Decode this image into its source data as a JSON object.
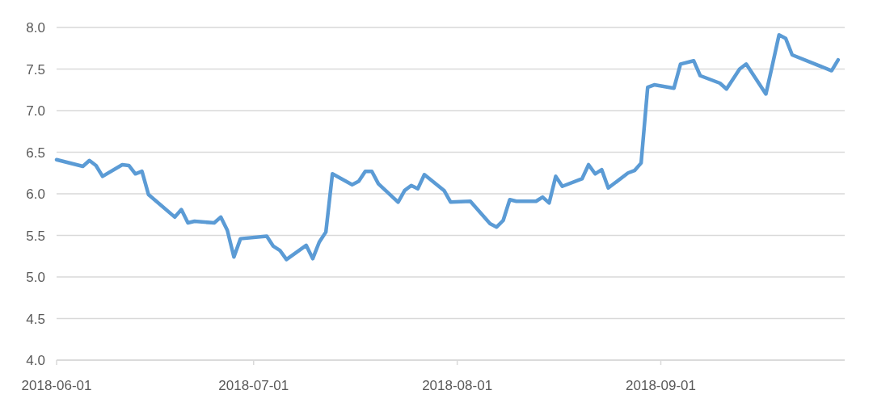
{
  "chart_data": {
    "type": "line",
    "x": [
      "2018-06-01",
      "2018-06-05",
      "2018-06-06",
      "2018-06-07",
      "2018-06-08",
      "2018-06-11",
      "2018-06-12",
      "2018-06-13",
      "2018-06-14",
      "2018-06-15",
      "2018-06-19",
      "2018-06-20",
      "2018-06-21",
      "2018-06-22",
      "2018-06-25",
      "2018-06-26",
      "2018-06-27",
      "2018-06-28",
      "2018-06-29",
      "2018-07-03",
      "2018-07-04",
      "2018-07-05",
      "2018-07-06",
      "2018-07-09",
      "2018-07-10",
      "2018-07-11",
      "2018-07-12",
      "2018-07-13",
      "2018-07-16",
      "2018-07-17",
      "2018-07-18",
      "2018-07-19",
      "2018-07-20",
      "2018-07-23",
      "2018-07-24",
      "2018-07-25",
      "2018-07-26",
      "2018-07-27",
      "2018-07-30",
      "2018-07-31",
      "2018-08-03",
      "2018-08-06",
      "2018-08-07",
      "2018-08-08",
      "2018-08-09",
      "2018-08-10",
      "2018-08-13",
      "2018-08-14",
      "2018-08-15",
      "2018-08-16",
      "2018-08-17",
      "2018-08-20",
      "2018-08-21",
      "2018-08-22",
      "2018-08-23",
      "2018-08-24",
      "2018-08-27",
      "2018-08-28",
      "2018-08-29",
      "2018-08-30",
      "2018-08-31",
      "2018-09-03",
      "2018-09-04",
      "2018-09-06",
      "2018-09-07",
      "2018-09-10",
      "2018-09-11",
      "2018-09-13",
      "2018-09-14",
      "2018-09-17",
      "2018-09-18",
      "2018-09-19",
      "2018-09-20",
      "2018-09-21",
      "2018-09-27",
      "2018-09-28"
    ],
    "series": [
      {
        "color": "#5b9bd5",
        "values": [
          6.41,
          6.33,
          6.4,
          6.34,
          6.21,
          6.35,
          6.34,
          6.24,
          6.27,
          5.99,
          5.72,
          5.81,
          5.65,
          5.67,
          5.65,
          5.72,
          5.56,
          5.24,
          5.46,
          5.49,
          5.37,
          5.32,
          5.21,
          5.38,
          5.22,
          5.42,
          5.54,
          6.24,
          6.11,
          6.15,
          6.27,
          6.27,
          6.12,
          5.9,
          6.04,
          6.1,
          6.06,
          6.23,
          6.04,
          5.9,
          5.91,
          5.64,
          5.6,
          5.68,
          5.93,
          5.91,
          5.91,
          5.96,
          5.89,
          6.21,
          6.09,
          6.18,
          6.35,
          6.24,
          6.29,
          6.07,
          6.25,
          6.28,
          6.37,
          7.28,
          7.31,
          7.27,
          7.56,
          7.6,
          7.42,
          7.33,
          7.26,
          7.5,
          7.56,
          7.2,
          7.55,
          7.91,
          7.87,
          7.67,
          7.48,
          7.61
        ]
      }
    ],
    "xlim": [
      "2018-06-01",
      "2018-09-29"
    ],
    "xticks": [
      "2018-06-01",
      "2018-07-01",
      "2018-08-01",
      "2018-09-01"
    ],
    "ylim": [
      4.0,
      8.0
    ],
    "yticks": [
      {
        "value": 4,
        "label": "4.0"
      },
      {
        "value": 4.5,
        "label": "4.5"
      },
      {
        "value": 5,
        "label": "5.0"
      },
      {
        "value": 5.5,
        "label": "5.5"
      },
      {
        "value": 6,
        "label": "6.0"
      },
      {
        "value": 6.5,
        "label": "6.5"
      },
      {
        "value": 7,
        "label": "7.0"
      },
      {
        "value": 7.5,
        "label": "7.5"
      },
      {
        "value": 8,
        "label": "8.0"
      }
    ],
    "grid": "y",
    "marker": "none",
    "line_style": "solid"
  }
}
